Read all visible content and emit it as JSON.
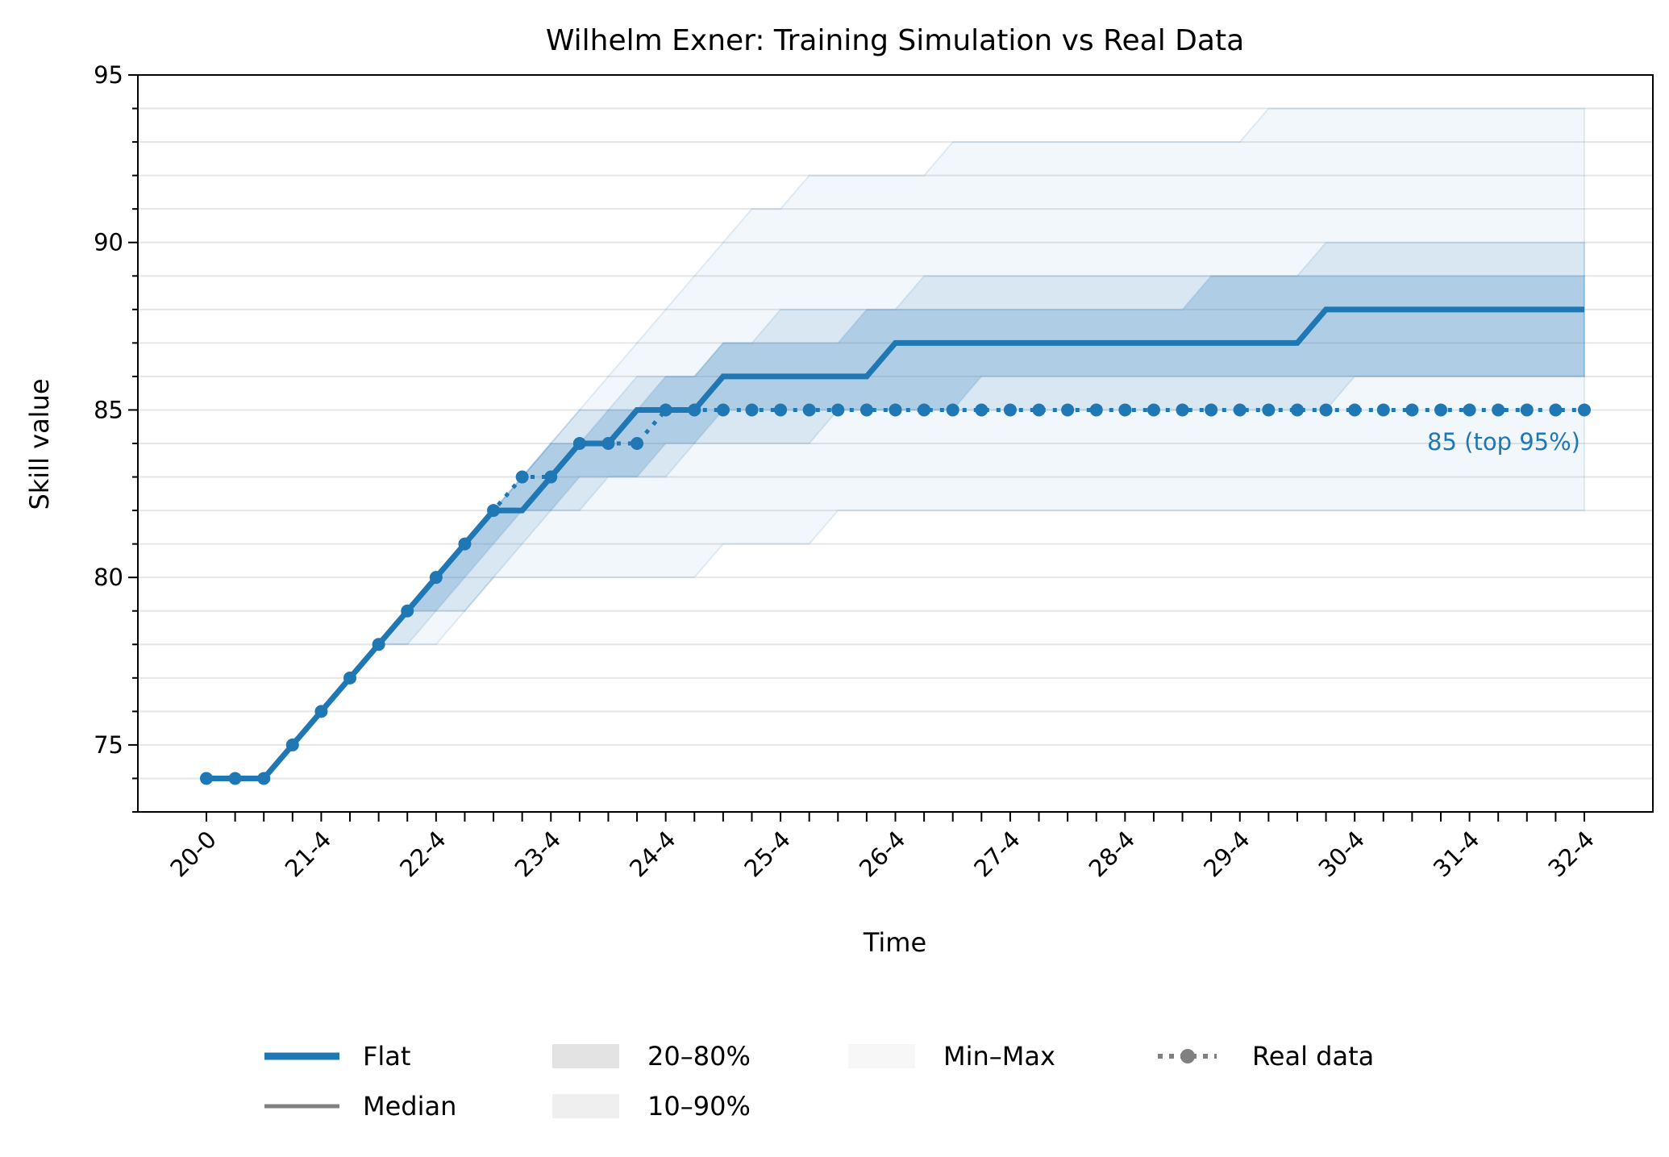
{
  "chart_data": {
    "type": "line",
    "title": "Wilhelm Exner: Training Simulation vs Real Data",
    "xlabel": "Time",
    "ylabel": "Skill value",
    "ylim": [
      73,
      95
    ],
    "yticks_major": [
      75,
      80,
      85,
      90,
      95
    ],
    "ytick_minor_step": 1,
    "grid": "horizontal, every 1 unit",
    "xticks": [
      {
        "step": 0,
        "label": "20-0"
      },
      {
        "step": 4,
        "label": "21-4"
      },
      {
        "step": 8,
        "label": "22-4"
      },
      {
        "step": 12,
        "label": "23-4"
      },
      {
        "step": 16,
        "label": "24-4"
      },
      {
        "step": 20,
        "label": "25-4"
      },
      {
        "step": 24,
        "label": "26-4"
      },
      {
        "step": 28,
        "label": "27-4"
      },
      {
        "step": 32,
        "label": "28-4"
      },
      {
        "step": 36,
        "label": "29-4"
      },
      {
        "step": 40,
        "label": "30-4"
      },
      {
        "step": 44,
        "label": "31-4"
      },
      {
        "step": 48,
        "label": "32-4"
      }
    ],
    "color": "#1f77b4",
    "series": [
      {
        "name": "Flat",
        "style": "solid-thick",
        "values": [
          74,
          74,
          74,
          75,
          76,
          77,
          78,
          79,
          80,
          81,
          82,
          82,
          83,
          84,
          84,
          85,
          85,
          85,
          86,
          86,
          86,
          86,
          86,
          86,
          87,
          87,
          87,
          87,
          87,
          87,
          87,
          87,
          87,
          87,
          87,
          87,
          87,
          87,
          87,
          88,
          88,
          88,
          88,
          88,
          88,
          88,
          88,
          88,
          88
        ]
      },
      {
        "name": "Real data",
        "style": "dotted-markers",
        "values": [
          74,
          74,
          74,
          75,
          76,
          77,
          78,
          79,
          80,
          81,
          82,
          83,
          83,
          84,
          84,
          84,
          85,
          85,
          85,
          85,
          85,
          85,
          85,
          85,
          85,
          85,
          85,
          85,
          85,
          85,
          85,
          85,
          85,
          85,
          85,
          85,
          85,
          85,
          85,
          85,
          85,
          85,
          85,
          85,
          85,
          85,
          85,
          85,
          85
        ]
      }
    ],
    "bands": [
      {
        "name": "Min–Max",
        "lower": [
          74,
          74,
          74,
          75,
          76,
          77,
          78,
          78,
          78,
          79,
          80,
          80,
          80,
          80,
          80,
          80,
          80,
          80,
          81,
          81,
          81,
          81,
          82,
          82,
          82,
          82,
          82,
          82,
          82,
          82,
          82,
          82,
          82,
          82,
          82,
          82,
          82,
          82,
          82,
          82,
          82,
          82,
          82,
          82,
          82,
          82,
          82,
          82,
          82
        ],
        "upper": [
          74,
          74,
          74,
          75,
          76,
          77,
          78,
          79,
          80,
          81,
          82,
          83,
          84,
          85,
          86,
          87,
          88,
          89,
          90,
          91,
          91,
          92,
          92,
          92,
          92,
          92,
          93,
          93,
          93,
          93,
          93,
          93,
          93,
          93,
          93,
          93,
          93,
          94,
          94,
          94,
          94,
          94,
          94,
          94,
          94,
          94,
          94,
          94,
          94
        ]
      },
      {
        "name": "10–90%",
        "lower": [
          74,
          74,
          74,
          75,
          76,
          77,
          78,
          78,
          79,
          79,
          80,
          81,
          82,
          82,
          83,
          83,
          83,
          84,
          84,
          84,
          84,
          84,
          85,
          85,
          85,
          85,
          85,
          85,
          85,
          85,
          85,
          85,
          85,
          85,
          85,
          85,
          85,
          85,
          85,
          85,
          86,
          86,
          86,
          86,
          86,
          86,
          86,
          86,
          86
        ],
        "upper": [
          74,
          74,
          74,
          75,
          76,
          77,
          78,
          79,
          80,
          81,
          82,
          83,
          84,
          85,
          85,
          86,
          86,
          86,
          87,
          87,
          88,
          88,
          88,
          88,
          88,
          89,
          89,
          89,
          89,
          89,
          89,
          89,
          89,
          89,
          89,
          89,
          89,
          89,
          89,
          90,
          90,
          90,
          90,
          90,
          90,
          90,
          90,
          90,
          90
        ]
      },
      {
        "name": "20–80%",
        "lower": [
          74,
          74,
          74,
          75,
          76,
          77,
          78,
          79,
          79,
          80,
          81,
          82,
          82,
          83,
          83,
          83,
          84,
          84,
          85,
          85,
          85,
          85,
          85,
          85,
          85,
          85,
          85,
          86,
          86,
          86,
          86,
          86,
          86,
          86,
          86,
          86,
          86,
          86,
          86,
          86,
          86,
          86,
          86,
          86,
          86,
          86,
          86,
          86,
          86
        ],
        "upper": [
          74,
          74,
          74,
          75,
          76,
          77,
          78,
          79,
          80,
          81,
          82,
          83,
          84,
          84,
          85,
          85,
          86,
          86,
          87,
          87,
          87,
          87,
          87,
          88,
          88,
          88,
          88,
          88,
          88,
          88,
          88,
          88,
          88,
          88,
          88,
          89,
          89,
          89,
          89,
          89,
          89,
          89,
          89,
          89,
          89,
          89,
          89,
          89,
          89
        ]
      }
    ],
    "annotation": {
      "text": "85 (top 95%)",
      "step": 48,
      "value": 85
    },
    "legend": {
      "placement": "bottom-center, below plot",
      "entries": [
        {
          "label": "Flat",
          "kind": "line-thick",
          "color": "#1f77b4"
        },
        {
          "label": "Median",
          "kind": "line",
          "color": "#808080"
        },
        {
          "label": "20–80%",
          "kind": "patch",
          "color": "#e3e3e3"
        },
        {
          "label": "10–90%",
          "kind": "patch",
          "color": "#efefef"
        },
        {
          "label": "Min–Max",
          "kind": "patch",
          "color": "#f7f7f7"
        },
        {
          "label": "Real data",
          "kind": "dotted-marker",
          "color": "#808080"
        }
      ]
    }
  }
}
